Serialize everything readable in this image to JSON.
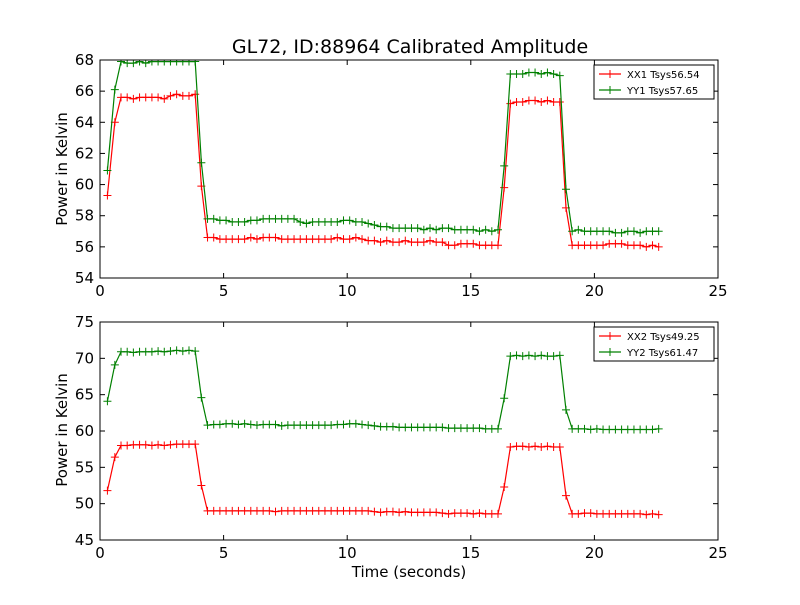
{
  "title": "GL72, ID:88964 Calibrated Amplitude",
  "chart_data": [
    {
      "type": "line",
      "ylabel": "Power in Kelvin",
      "xlabel": "",
      "xlim": [
        0,
        25
      ],
      "ylim": [
        54,
        68
      ],
      "xticks": [
        "0",
        "5",
        "10",
        "15",
        "20",
        "25"
      ],
      "yticks": [
        "54",
        "56",
        "58",
        "60",
        "62",
        "64",
        "66",
        "68"
      ],
      "grid": false,
      "legend_position": "top-right",
      "x": [
        0.3,
        0.6,
        0.85,
        1.1,
        1.35,
        1.6,
        1.85,
        2.1,
        2.35,
        2.6,
        2.85,
        3.1,
        3.35,
        3.6,
        3.85,
        4.1,
        4.35,
        4.6,
        4.85,
        5.1,
        5.35,
        5.6,
        5.85,
        6.1,
        6.35,
        6.6,
        6.85,
        7.1,
        7.35,
        7.6,
        7.85,
        8.1,
        8.35,
        8.6,
        8.85,
        9.1,
        9.35,
        9.6,
        9.85,
        10.1,
        10.35,
        10.6,
        10.85,
        11.1,
        11.35,
        11.6,
        11.85,
        12.1,
        12.35,
        12.6,
        12.85,
        13.1,
        13.35,
        13.6,
        13.85,
        14.1,
        14.35,
        14.6,
        14.85,
        15.1,
        15.35,
        15.6,
        15.85,
        16.1,
        16.35,
        16.6,
        16.85,
        17.1,
        17.35,
        17.6,
        17.85,
        18.1,
        18.35,
        18.6,
        18.85,
        19.1,
        19.35,
        19.6,
        19.85,
        20.1,
        20.35,
        20.6,
        20.85,
        21.1,
        21.35,
        21.6,
        21.85,
        22.1,
        22.35,
        22.6
      ],
      "series": [
        {
          "name": "XX1 Tsys56.54",
          "color": "#ff0000",
          "values": [
            59.3,
            64.0,
            65.6,
            65.6,
            65.5,
            65.6,
            65.6,
            65.6,
            65.6,
            65.5,
            65.7,
            65.8,
            65.7,
            65.7,
            65.8,
            59.9,
            56.6,
            56.6,
            56.5,
            56.5,
            56.5,
            56.5,
            56.5,
            56.6,
            56.5,
            56.6,
            56.6,
            56.6,
            56.5,
            56.5,
            56.5,
            56.5,
            56.5,
            56.5,
            56.5,
            56.5,
            56.5,
            56.6,
            56.5,
            56.5,
            56.6,
            56.5,
            56.4,
            56.4,
            56.3,
            56.4,
            56.3,
            56.3,
            56.4,
            56.3,
            56.3,
            56.3,
            56.4,
            56.3,
            56.3,
            56.1,
            56.1,
            56.2,
            56.2,
            56.2,
            56.1,
            56.1,
            56.1,
            56.1,
            59.8,
            65.2,
            65.3,
            65.3,
            65.4,
            65.4,
            65.3,
            65.4,
            65.3,
            65.3,
            58.5,
            56.1,
            56.1,
            56.1,
            56.1,
            56.1,
            56.1,
            56.2,
            56.2,
            56.2,
            56.1,
            56.1,
            56.1,
            56.0,
            56.1,
            56.0
          ]
        },
        {
          "name": "YY1 Tsys57.65",
          "color": "#008000",
          "values": [
            60.9,
            66.1,
            67.9,
            67.8,
            67.8,
            67.9,
            67.8,
            67.9,
            67.9,
            67.9,
            67.9,
            67.9,
            67.9,
            67.9,
            67.9,
            61.4,
            57.8,
            57.8,
            57.7,
            57.7,
            57.6,
            57.6,
            57.6,
            57.7,
            57.7,
            57.8,
            57.8,
            57.8,
            57.8,
            57.8,
            57.8,
            57.6,
            57.5,
            57.6,
            57.6,
            57.6,
            57.6,
            57.6,
            57.7,
            57.7,
            57.6,
            57.6,
            57.5,
            57.4,
            57.3,
            57.3,
            57.2,
            57.2,
            57.2,
            57.2,
            57.2,
            57.1,
            57.2,
            57.1,
            57.2,
            57.2,
            57.1,
            57.1,
            57.1,
            57.1,
            57.0,
            57.1,
            57.0,
            57.1,
            61.2,
            67.1,
            67.1,
            67.1,
            67.2,
            67.2,
            67.1,
            67.2,
            67.1,
            67.0,
            59.7,
            57.0,
            57.1,
            57.0,
            57.0,
            57.0,
            57.0,
            57.0,
            56.9,
            56.9,
            57.0,
            57.0,
            56.9,
            57.0,
            57.0,
            57.0
          ]
        }
      ]
    },
    {
      "type": "line",
      "ylabel": "Power in Kelvin",
      "xlabel": "Time (seconds)",
      "xlim": [
        0,
        25
      ],
      "ylim": [
        45,
        75
      ],
      "xticks": [
        "0",
        "5",
        "10",
        "15",
        "20",
        "25"
      ],
      "yticks": [
        "45",
        "50",
        "55",
        "60",
        "65",
        "70",
        "75"
      ],
      "grid": false,
      "legend_position": "top-right",
      "x": [
        0.3,
        0.6,
        0.85,
        1.1,
        1.35,
        1.6,
        1.85,
        2.1,
        2.35,
        2.6,
        2.85,
        3.1,
        3.35,
        3.6,
        3.85,
        4.1,
        4.35,
        4.6,
        4.85,
        5.1,
        5.35,
        5.6,
        5.85,
        6.1,
        6.35,
        6.6,
        6.85,
        7.1,
        7.35,
        7.6,
        7.85,
        8.1,
        8.35,
        8.6,
        8.85,
        9.1,
        9.35,
        9.6,
        9.85,
        10.1,
        10.35,
        10.6,
        10.85,
        11.1,
        11.35,
        11.6,
        11.85,
        12.1,
        12.35,
        12.6,
        12.85,
        13.1,
        13.35,
        13.6,
        13.85,
        14.1,
        14.35,
        14.6,
        14.85,
        15.1,
        15.35,
        15.6,
        15.85,
        16.1,
        16.35,
        16.6,
        16.85,
        17.1,
        17.35,
        17.6,
        17.85,
        18.1,
        18.35,
        18.6,
        18.85,
        19.1,
        19.35,
        19.6,
        19.85,
        20.1,
        20.35,
        20.6,
        20.85,
        21.1,
        21.35,
        21.6,
        21.85,
        22.1,
        22.35,
        22.6
      ],
      "series": [
        {
          "name": "XX2 Tsys49.25",
          "color": "#ff0000",
          "values": [
            51.8,
            56.4,
            58.0,
            58.0,
            58.1,
            58.1,
            58.1,
            58.0,
            58.1,
            58.0,
            58.1,
            58.2,
            58.2,
            58.2,
            58.2,
            52.5,
            49.0,
            49.0,
            49.0,
            49.0,
            49.0,
            49.0,
            49.0,
            49.0,
            49.0,
            49.0,
            49.0,
            48.9,
            49.0,
            49.0,
            49.0,
            49.0,
            49.0,
            49.0,
            49.0,
            49.0,
            49.0,
            49.0,
            49.0,
            49.0,
            49.0,
            49.0,
            49.0,
            48.9,
            48.8,
            48.9,
            48.9,
            48.8,
            48.9,
            48.8,
            48.8,
            48.8,
            48.8,
            48.8,
            48.7,
            48.6,
            48.7,
            48.7,
            48.7,
            48.6,
            48.7,
            48.6,
            48.6,
            48.6,
            52.3,
            57.8,
            57.9,
            57.9,
            57.8,
            57.9,
            57.8,
            57.9,
            57.8,
            57.8,
            51.1,
            48.6,
            48.6,
            48.7,
            48.7,
            48.6,
            48.6,
            48.6,
            48.6,
            48.6,
            48.6,
            48.6,
            48.6,
            48.5,
            48.6,
            48.5
          ]
        },
        {
          "name": "YY2 Tsys61.47",
          "color": "#008000",
          "values": [
            64.1,
            69.1,
            70.9,
            70.9,
            70.8,
            70.9,
            70.9,
            70.9,
            71.0,
            70.9,
            71.0,
            71.1,
            71.0,
            71.1,
            71.0,
            64.6,
            60.8,
            60.9,
            60.9,
            61.0,
            61.0,
            60.9,
            61.0,
            60.9,
            60.8,
            60.9,
            60.9,
            60.9,
            60.7,
            60.8,
            60.8,
            60.8,
            60.8,
            60.8,
            60.8,
            60.8,
            60.8,
            60.9,
            60.9,
            61.0,
            61.0,
            60.9,
            60.8,
            60.7,
            60.6,
            60.6,
            60.6,
            60.5,
            60.5,
            60.5,
            60.5,
            60.5,
            60.5,
            60.5,
            60.5,
            60.4,
            60.4,
            60.4,
            60.4,
            60.4,
            60.4,
            60.3,
            60.3,
            60.3,
            64.5,
            70.3,
            70.4,
            70.3,
            70.4,
            70.3,
            70.4,
            70.3,
            70.3,
            70.4,
            62.9,
            60.3,
            60.3,
            60.3,
            60.2,
            60.3,
            60.2,
            60.2,
            60.2,
            60.2,
            60.2,
            60.2,
            60.2,
            60.2,
            60.2,
            60.3
          ]
        }
      ]
    }
  ]
}
